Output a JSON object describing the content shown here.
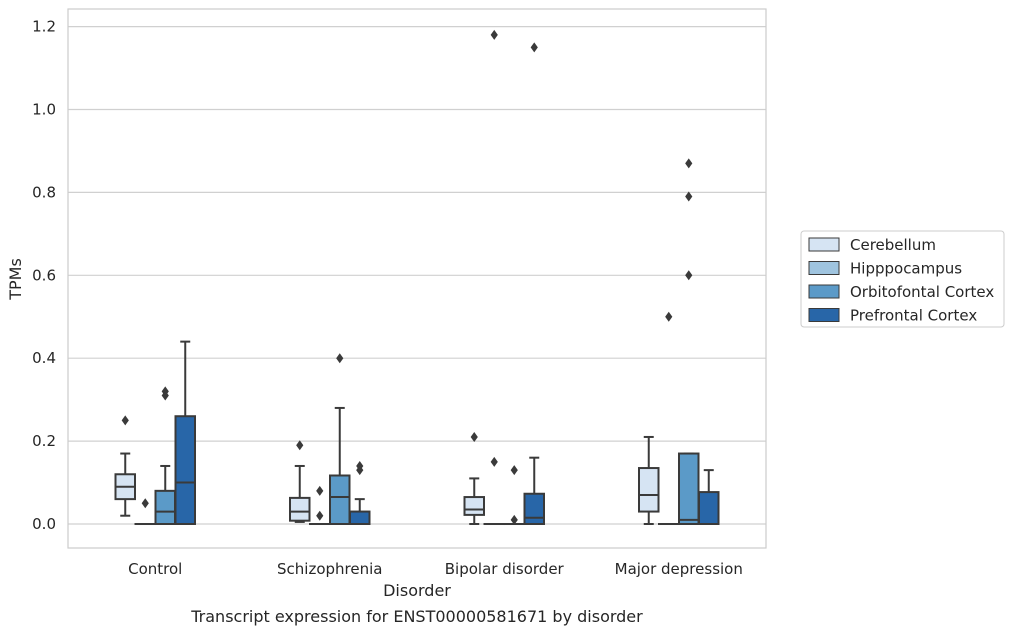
{
  "chart_data": {
    "type": "box",
    "caption": "Transcript expression for ENST00000581671 by disorder",
    "xlabel": "Disorder",
    "ylabel": "TPMs",
    "ylim": [
      -0.055,
      1.24
    ],
    "yticks": [
      "0.0",
      "0.2",
      "0.4",
      "0.6",
      "0.8",
      "1.0",
      "1.2"
    ],
    "grid": "horizontal",
    "legend_position": "right",
    "categories": [
      "Control",
      "Schizophrenia",
      "Bipolar disorder",
      "Major depression"
    ],
    "series": [
      {
        "name": "Cerebellum",
        "color": "#d6e4f3",
        "boxes": [
          {
            "min": 0.02,
            "q1": 0.06,
            "median": 0.09,
            "q3": 0.12,
            "max": 0.17,
            "outliers": [
              0.25
            ]
          },
          {
            "min": 0.005,
            "q1": 0.008,
            "median": 0.03,
            "q3": 0.063,
            "max": 0.14,
            "outliers": [
              0.19
            ]
          },
          {
            "min": 0.0,
            "q1": 0.022,
            "median": 0.035,
            "q3": 0.065,
            "max": 0.11,
            "outliers": [
              0.21
            ]
          },
          {
            "min": 0.0,
            "q1": 0.03,
            "median": 0.07,
            "q3": 0.135,
            "max": 0.21,
            "outliers": []
          }
        ]
      },
      {
        "name": "Hipppocampus",
        "color": "#9fc4df",
        "boxes": [
          {
            "min": 0.0,
            "q1": 0.0,
            "median": 0.0,
            "q3": 0.0,
            "max": 0.0,
            "outliers": [
              0.05
            ]
          },
          {
            "min": 0.0,
            "q1": 0.0,
            "median": 0.0,
            "q3": 0.0,
            "max": 0.0,
            "outliers": [
              0.02,
              0.08
            ]
          },
          {
            "min": 0.0,
            "q1": 0.0,
            "median": 0.0,
            "q3": 0.0,
            "max": 0.0,
            "outliers": [
              0.15,
              1.18
            ]
          },
          {
            "min": 0.0,
            "q1": 0.0,
            "median": 0.0,
            "q3": 0.0,
            "max": 0.0,
            "outliers": [
              0.5
            ]
          }
        ]
      },
      {
        "name": "Orbitofontal Cortex",
        "color": "#5b9ac8",
        "boxes": [
          {
            "min": 0.0,
            "q1": 0.0,
            "median": 0.03,
            "q3": 0.08,
            "max": 0.14,
            "outliers": [
              0.31,
              0.32
            ]
          },
          {
            "min": 0.0,
            "q1": 0.0,
            "median": 0.065,
            "q3": 0.117,
            "max": 0.28,
            "outliers": [
              0.4
            ]
          },
          {
            "min": 0.0,
            "q1": 0.0,
            "median": 0.0,
            "q3": 0.0,
            "max": 0.0,
            "outliers": [
              0.01,
              0.13
            ]
          },
          {
            "min": 0.0,
            "q1": 0.0,
            "median": 0.01,
            "q3": 0.17,
            "max": 0.17,
            "outliers": [
              0.6,
              0.79,
              0.87
            ]
          }
        ]
      },
      {
        "name": "Prefrontal Cortex",
        "color": "#2866a8",
        "boxes": [
          {
            "min": 0.0,
            "q1": 0.0,
            "median": 0.1,
            "q3": 0.26,
            "max": 0.44,
            "outliers": []
          },
          {
            "min": 0.0,
            "q1": 0.0,
            "median": 0.0,
            "q3": 0.03,
            "max": 0.06,
            "outliers": [
              0.13,
              0.14
            ]
          },
          {
            "min": 0.0,
            "q1": 0.0,
            "median": 0.015,
            "q3": 0.073,
            "max": 0.16,
            "outliers": [
              1.15
            ]
          },
          {
            "min": 0.0,
            "q1": 0.0,
            "median": 0.0,
            "q3": 0.077,
            "max": 0.13,
            "outliers": []
          }
        ]
      }
    ]
  }
}
